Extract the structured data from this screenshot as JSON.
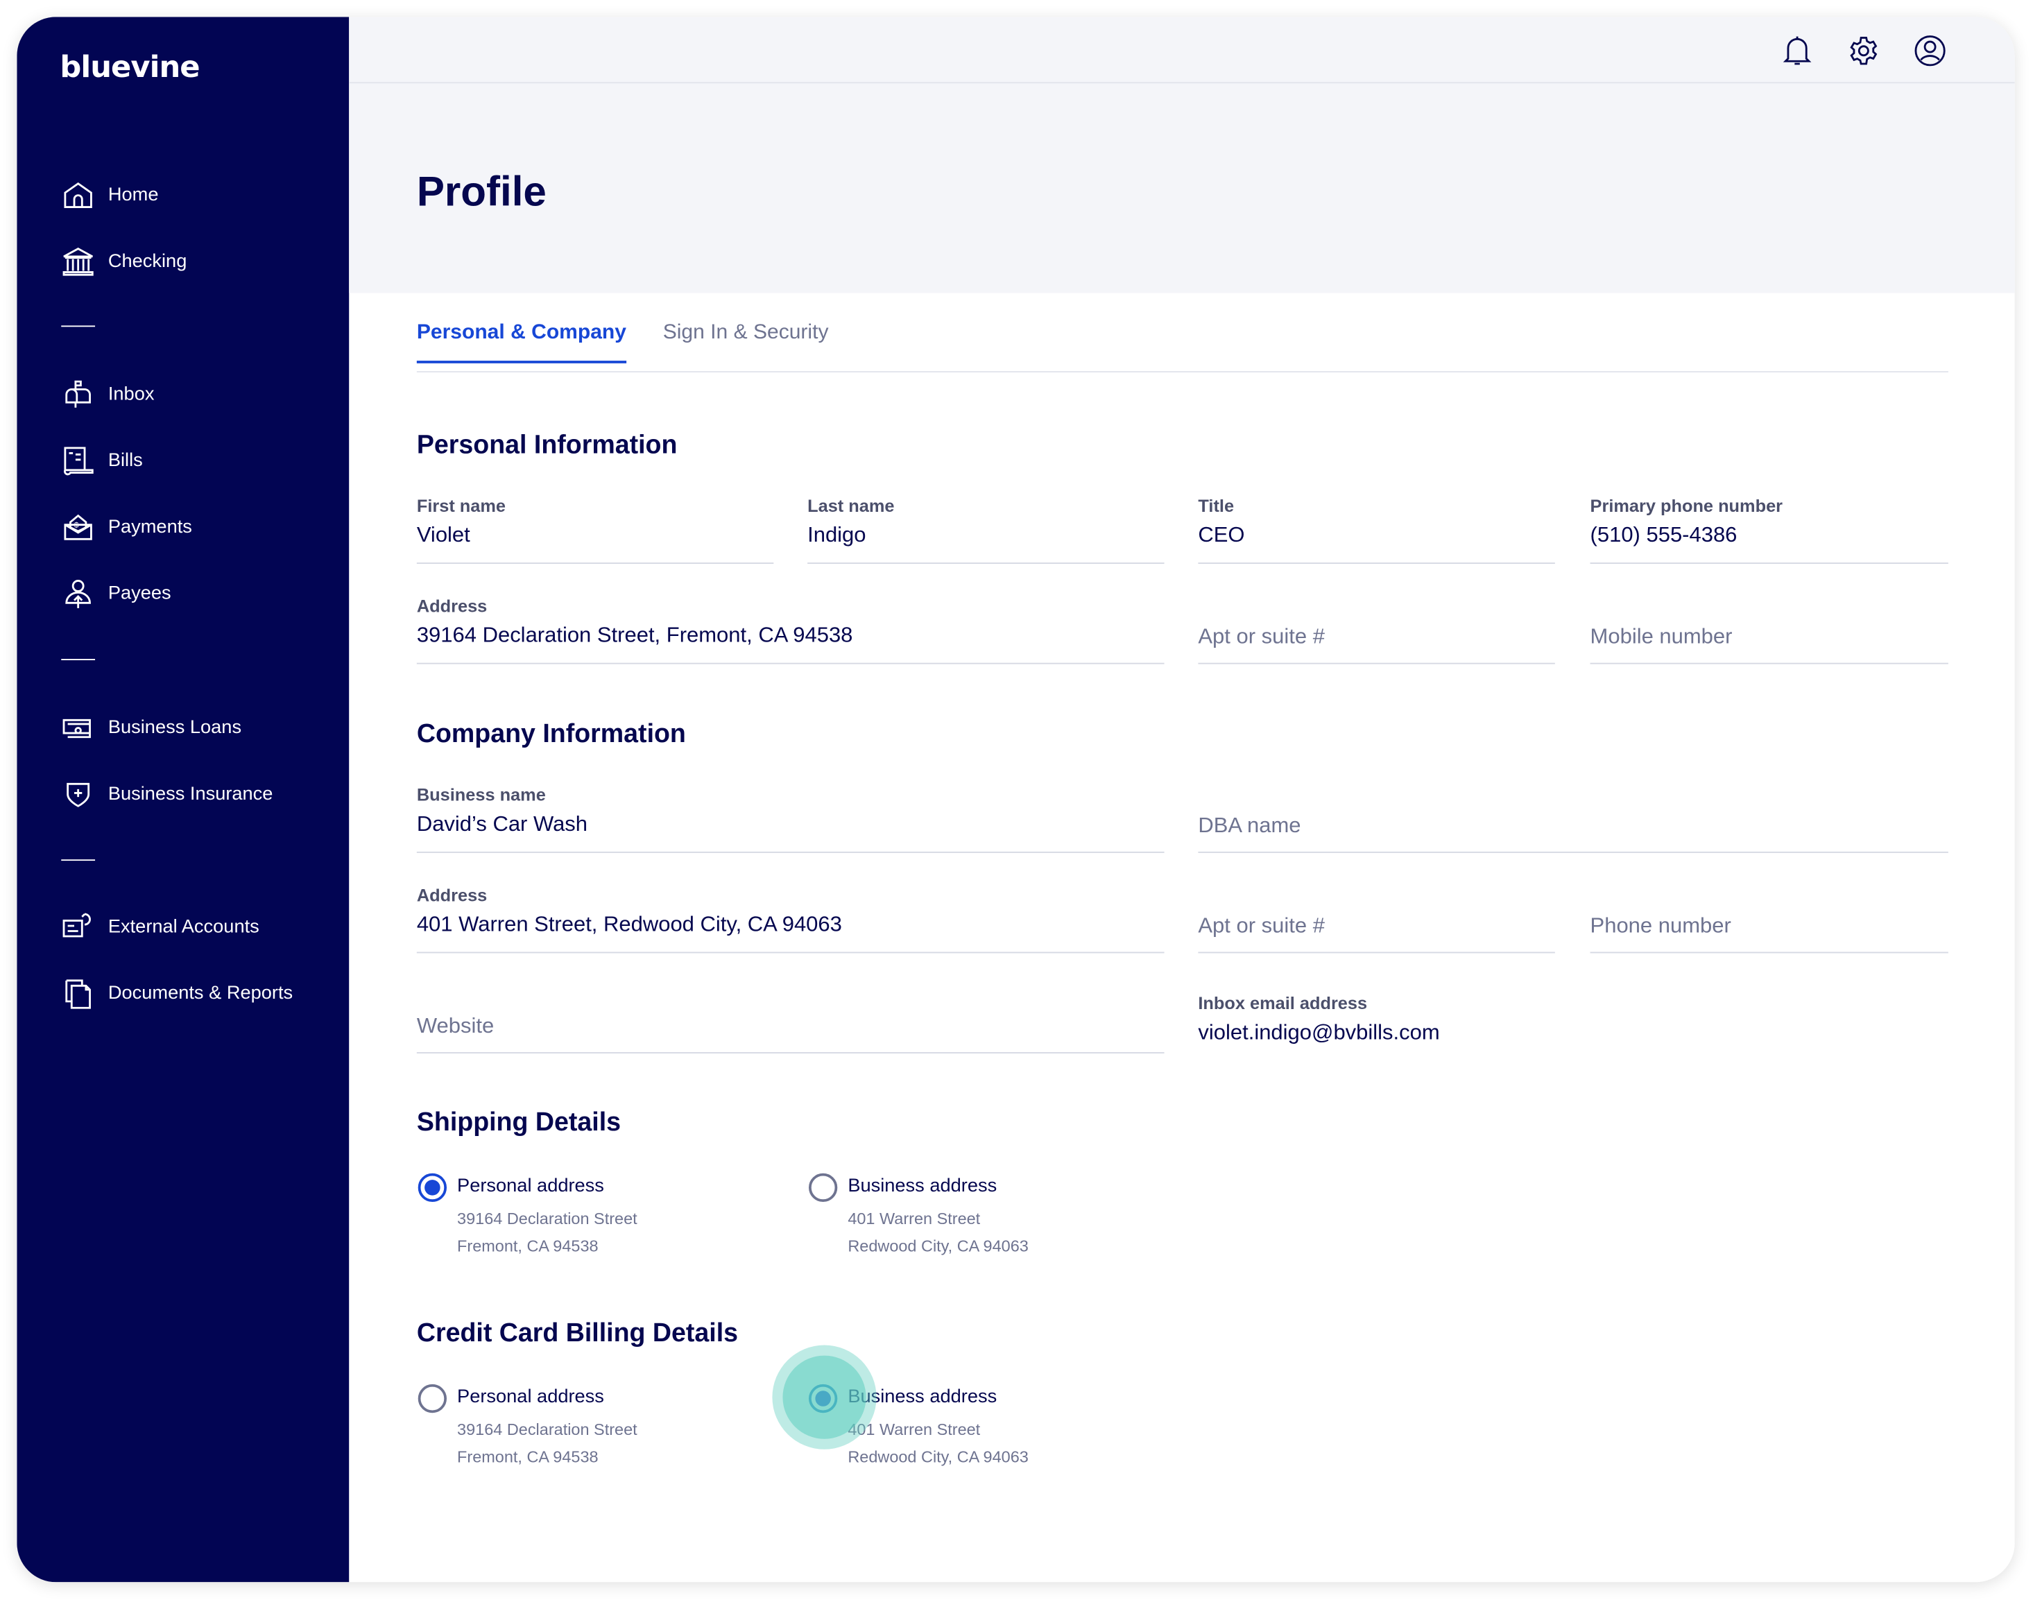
{
  "brand": "bluevine",
  "sidebar": {
    "items": [
      {
        "label": "Home",
        "icon": "home-icon"
      },
      {
        "label": "Checking",
        "icon": "bank-icon"
      },
      {
        "label": "Inbox",
        "icon": "mailbox-icon"
      },
      {
        "label": "Bills",
        "icon": "bill-icon"
      },
      {
        "label": "Payments",
        "icon": "payment-envelope-icon"
      },
      {
        "label": "Payees",
        "icon": "payee-icon"
      },
      {
        "label": "Business Loans",
        "icon": "loan-icon"
      },
      {
        "label": "Business Insurance",
        "icon": "shield-icon"
      },
      {
        "label": "External Accounts",
        "icon": "external-accounts-icon"
      },
      {
        "label": "Documents & Reports",
        "icon": "documents-icon"
      }
    ]
  },
  "header": {
    "icons": [
      "bell-icon",
      "gear-icon",
      "user-icon"
    ]
  },
  "page": {
    "title": "Profile"
  },
  "tabs": [
    {
      "label": "Personal & Company",
      "active": true
    },
    {
      "label": "Sign In & Security",
      "active": false
    }
  ],
  "personal": {
    "heading": "Personal Information",
    "first_name": {
      "label": "First name",
      "value": "Violet"
    },
    "last_name": {
      "label": "Last name",
      "value": "Indigo"
    },
    "title": {
      "label": "Title",
      "value": "CEO"
    },
    "phone": {
      "label": "Primary phone number",
      "value": "(510) 555-4386"
    },
    "address": {
      "label": "Address",
      "value": "39164 Declaration Street, Fremont, CA 94538"
    },
    "apt_placeholder": "Apt or suite #",
    "mobile_placeholder": "Mobile number"
  },
  "company": {
    "heading": "Company Information",
    "business_name": {
      "label": "Business name",
      "value": "David’s Car Wash"
    },
    "dba_placeholder": "DBA name",
    "address": {
      "label": "Address",
      "value": "401 Warren Street, Redwood City, CA 94063"
    },
    "apt_placeholder": "Apt or suite #",
    "phone_placeholder": "Phone number",
    "website_placeholder": "Website",
    "inbox_email": {
      "label": "Inbox email address",
      "value": "violet.indigo@bvbills.com"
    }
  },
  "shipping": {
    "heading": "Shipping Details",
    "options": [
      {
        "label": "Personal address",
        "line1": "39164 Declaration Street",
        "line2": "Fremont, CA 94538",
        "selected": true
      },
      {
        "label": "Business address",
        "line1": "401 Warren Street",
        "line2": "Redwood City, CA 94063",
        "selected": false
      }
    ]
  },
  "billing": {
    "heading": "Credit Card Billing Details",
    "options": [
      {
        "label": "Personal address",
        "line1": "39164 Declaration Street",
        "line2": "Fremont, CA 94538",
        "selected": false
      },
      {
        "label": "Business address",
        "line1": "401 Warren Street",
        "line2": "Redwood City, CA 94063",
        "selected": true
      }
    ]
  },
  "colors": {
    "sidebar": "#020553",
    "accent": "#1747d6",
    "text": "#05074f",
    "click_halo": "#5ccdbf"
  }
}
